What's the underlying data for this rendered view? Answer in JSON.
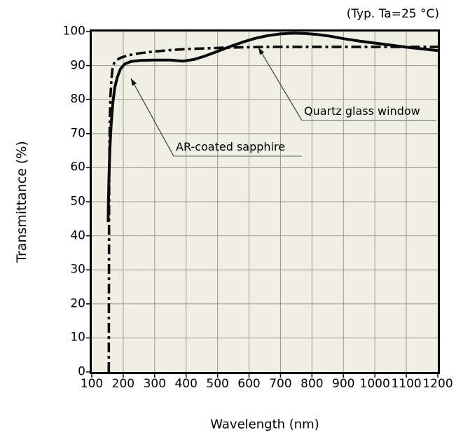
{
  "condition_note": "(Typ. Ta=25 °C)",
  "chart_data": {
    "type": "line",
    "title": "",
    "xlabel": "Wavelength (nm)",
    "ylabel": "Transmittance (%)",
    "xlim": [
      100,
      1200
    ],
    "ylim": [
      0,
      100
    ],
    "xticks": [
      100,
      200,
      300,
      400,
      500,
      600,
      700,
      800,
      900,
      1000,
      1100,
      1200
    ],
    "yticks": [
      0,
      10,
      20,
      30,
      40,
      50,
      60,
      70,
      80,
      90,
      100
    ],
    "grid": true,
    "plot_bg_color": "#f0efe6",
    "grid_color": "#98988f",
    "line_color": "#0a0a0a",
    "series": [
      {
        "name": "AR-coated sapphire",
        "style": "solid",
        "points": [
          [
            152,
            44
          ],
          [
            153,
            50
          ],
          [
            155,
            58
          ],
          [
            158,
            66
          ],
          [
            162,
            73
          ],
          [
            167,
            79
          ],
          [
            173,
            83.5
          ],
          [
            181,
            86.5
          ],
          [
            191,
            89
          ],
          [
            205,
            90.5
          ],
          [
            225,
            91.2
          ],
          [
            255,
            91.5
          ],
          [
            300,
            91.6
          ],
          [
            350,
            91.6
          ],
          [
            390,
            91.3
          ],
          [
            425,
            91.8
          ],
          [
            460,
            92.8
          ],
          [
            500,
            94.2
          ],
          [
            540,
            95.6
          ],
          [
            580,
            96.9
          ],
          [
            620,
            98
          ],
          [
            660,
            98.8
          ],
          [
            700,
            99.3
          ],
          [
            740,
            99.5
          ],
          [
            780,
            99.4
          ],
          [
            820,
            99.1
          ],
          [
            860,
            98.6
          ],
          [
            900,
            97.9
          ],
          [
            950,
            97.2
          ],
          [
            1000,
            96.6
          ],
          [
            1050,
            96
          ],
          [
            1100,
            95.4
          ],
          [
            1150,
            94.9
          ],
          [
            1200,
            94.4
          ]
        ]
      },
      {
        "name": "Quartz glass window",
        "style": "dash-dot",
        "points": [
          [
            154,
            0
          ],
          [
            154.3,
            15
          ],
          [
            154.7,
            30
          ],
          [
            155,
            45
          ],
          [
            155.5,
            57
          ],
          [
            156.3,
            66
          ],
          [
            157.5,
            74
          ],
          [
            159.5,
            81
          ],
          [
            162.5,
            86
          ],
          [
            166,
            89
          ],
          [
            171,
            90.7
          ],
          [
            179,
            91.6
          ],
          [
            192,
            92.3
          ],
          [
            215,
            93
          ],
          [
            250,
            93.6
          ],
          [
            295,
            94.1
          ],
          [
            345,
            94.5
          ],
          [
            400,
            94.85
          ],
          [
            460,
            95.05
          ],
          [
            520,
            95.25
          ],
          [
            590,
            95.4
          ],
          [
            670,
            95.5
          ],
          [
            760,
            95.5
          ],
          [
            860,
            95.5
          ],
          [
            960,
            95.5
          ],
          [
            1060,
            95.5
          ],
          [
            1160,
            95.5
          ],
          [
            1200,
            95.5
          ]
        ]
      }
    ],
    "annotations": [
      {
        "label": "AR-coated sapphire",
        "points_to_series": "AR-coated sapphire"
      },
      {
        "label": "Quartz glass window",
        "points_to_series": "Quartz glass window"
      }
    ]
  }
}
